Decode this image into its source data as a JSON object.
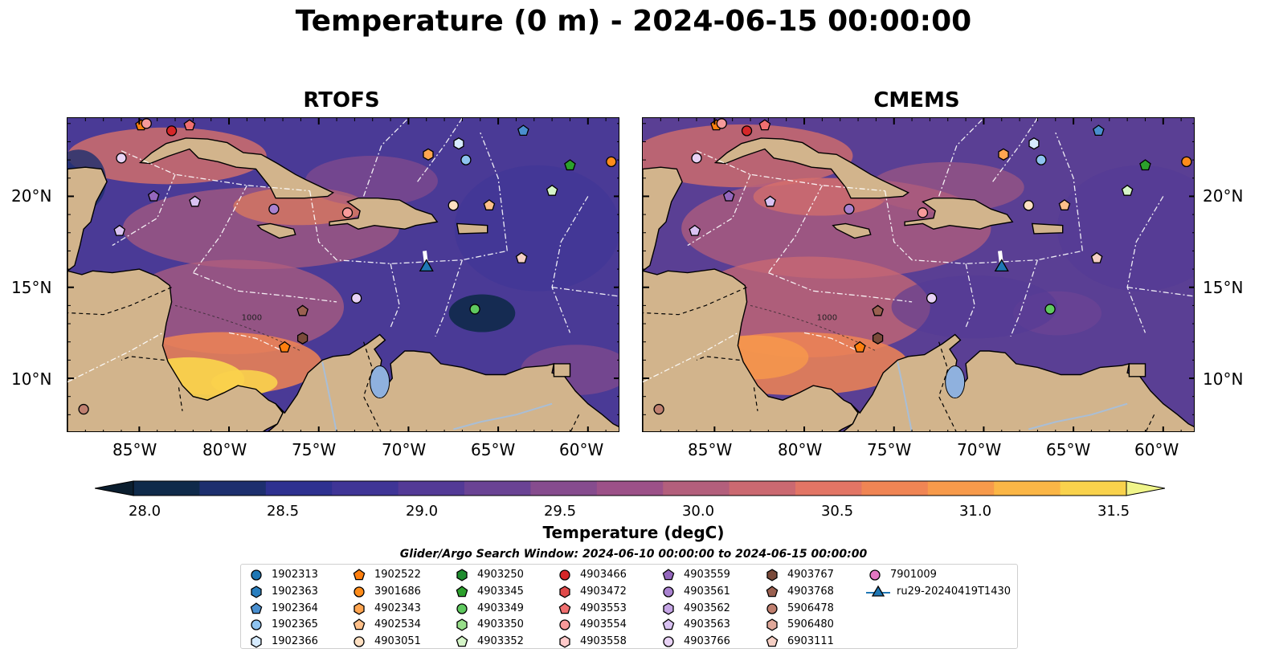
{
  "title": "Temperature (0 m) - 2024-06-15 00:00:00",
  "panels": [
    {
      "id": "rtofs",
      "title": "RTOFS"
    },
    {
      "id": "cmems",
      "title": "CMEMS"
    }
  ],
  "axes": {
    "lon_ticks": [
      "85°W",
      "80°W",
      "75°W",
      "70°W",
      "65°W",
      "60°W"
    ],
    "lat_ticks": [
      "20°N",
      "15°N",
      "10°N"
    ],
    "contour_label": "1000"
  },
  "colorbar": {
    "label": "Temperature (degC)",
    "ticks": [
      "28.0",
      "28.5",
      "29.0",
      "29.5",
      "30.0",
      "30.5",
      "31.0",
      "31.5"
    ],
    "colors": [
      "#0f2a4a",
      "#1d2f6e",
      "#2e3190",
      "#3f3596",
      "#533a96",
      "#6a4394",
      "#864c8e",
      "#9c5188",
      "#b35f7c",
      "#cb6971",
      "#e27565",
      "#f08554",
      "#f79a4b",
      "#fbb646",
      "#f9d24c"
    ],
    "extend_low": "#0b1e2f",
    "extend_high": "#f0f58a"
  },
  "legend": {
    "title": "Glider/Argo Search Window: 2024-06-10 00:00:00 to 2024-06-15 00:00:00",
    "items": [
      {
        "label": "1902313",
        "color": "#1f77b4",
        "shape": "circle"
      },
      {
        "label": "1902363",
        "color": "#2a7fbf",
        "shape": "hexagon"
      },
      {
        "label": "1902364",
        "color": "#4a8fcf",
        "shape": "pentagon"
      },
      {
        "label": "1902365",
        "color": "#8ec3ef",
        "shape": "circle"
      },
      {
        "label": "1902366",
        "color": "#d6ebff",
        "shape": "hexagon"
      },
      {
        "label": "1902522",
        "color": "#ff7f0e",
        "shape": "pentagon"
      },
      {
        "label": "3901686",
        "color": "#ff8c1a",
        "shape": "circle"
      },
      {
        "label": "4902343",
        "color": "#ffa550",
        "shape": "hexagon"
      },
      {
        "label": "4902534",
        "color": "#ffc08a",
        "shape": "pentagon"
      },
      {
        "label": "4903051",
        "color": "#ffe0c2",
        "shape": "circle"
      },
      {
        "label": "4903250",
        "color": "#1e8c2e",
        "shape": "hexagon"
      },
      {
        "label": "4903345",
        "color": "#2ca02c",
        "shape": "pentagon"
      },
      {
        "label": "4903349",
        "color": "#5fc95f",
        "shape": "circle"
      },
      {
        "label": "4903350",
        "color": "#98df8a",
        "shape": "hexagon"
      },
      {
        "label": "4903352",
        "color": "#d5f5c8",
        "shape": "pentagon"
      },
      {
        "label": "4903466",
        "color": "#d62728",
        "shape": "circle"
      },
      {
        "label": "4903472",
        "color": "#e04a4a",
        "shape": "hexagon"
      },
      {
        "label": "4903553",
        "color": "#f07070",
        "shape": "pentagon"
      },
      {
        "label": "4903554",
        "color": "#f79a9a",
        "shape": "circle"
      },
      {
        "label": "4903558",
        "color": "#ffc9c9",
        "shape": "hexagon"
      },
      {
        "label": "4903559",
        "color": "#9467bd",
        "shape": "pentagon"
      },
      {
        "label": "4903561",
        "color": "#a982d0",
        "shape": "circle"
      },
      {
        "label": "4903562",
        "color": "#c5a5e5",
        "shape": "hexagon"
      },
      {
        "label": "4903563",
        "color": "#d9c2f2",
        "shape": "pentagon"
      },
      {
        "label": "4903766",
        "color": "#e8d2f5",
        "shape": "circle"
      },
      {
        "label": "4903767",
        "color": "#7a4a3a",
        "shape": "hexagon"
      },
      {
        "label": "4903768",
        "color": "#9a6050",
        "shape": "pentagon"
      },
      {
        "label": "5906478",
        "color": "#c08070",
        "shape": "circle"
      },
      {
        "label": "5906480",
        "color": "#e0a89a",
        "shape": "hexagon"
      },
      {
        "label": "6903111",
        "color": "#f5cfc4",
        "shape": "pentagon"
      },
      {
        "label": "7901009",
        "color": "#e377c2",
        "shape": "circle"
      },
      {
        "label": "ru29-20240419T1430",
        "color": "#1f77b4",
        "shape": "triangle-line"
      }
    ]
  },
  "markers": [
    {
      "id": "1902522",
      "lon": -84.9,
      "lat": 23.9,
      "color": "#ff7f0e",
      "shape": "pentagon"
    },
    {
      "id": "4903554",
      "lon": -84.6,
      "lat": 24.0,
      "color": "#f79a9a",
      "shape": "circle"
    },
    {
      "id": "4903466",
      "lon": -83.2,
      "lat": 23.6,
      "color": "#d62728",
      "shape": "circle"
    },
    {
      "id": "4903553",
      "lon": -82.2,
      "lat": 23.9,
      "color": "#f07070",
      "shape": "pentagon"
    },
    {
      "id": "1902364",
      "lon": -63.6,
      "lat": 23.6,
      "color": "#4a8fcf",
      "shape": "pentagon"
    },
    {
      "id": "1902366",
      "lon": -67.2,
      "lat": 22.9,
      "color": "#d6ebff",
      "shape": "hexagon"
    },
    {
      "id": "4902343",
      "lon": -68.9,
      "lat": 22.3,
      "color": "#ffa550",
      "shape": "hexagon"
    },
    {
      "id": "1902365",
      "lon": -66.8,
      "lat": 22.0,
      "color": "#8ec3ef",
      "shape": "circle"
    },
    {
      "id": "4903345",
      "lon": -61.0,
      "lat": 21.7,
      "color": "#2ca02c",
      "shape": "pentagon"
    },
    {
      "id": "3901686",
      "lon": -58.7,
      "lat": 21.9,
      "color": "#ff8c1a",
      "shape": "circle"
    },
    {
      "id": "4903766",
      "lon": -86.0,
      "lat": 22.1,
      "color": "#e8d2f5",
      "shape": "circle"
    },
    {
      "id": "4903559",
      "lon": -84.2,
      "lat": 20.0,
      "color": "#9467bd",
      "shape": "pentagon"
    },
    {
      "id": "4903563",
      "lon": -81.9,
      "lat": 19.7,
      "color": "#d9c2f2",
      "shape": "pentagon"
    },
    {
      "id": "4903561",
      "lon": -77.5,
      "lat": 19.3,
      "color": "#a982d0",
      "shape": "circle"
    },
    {
      "id": "4903554b",
      "lon": -73.4,
      "lat": 19.1,
      "color": "#f79a9a",
      "shape": "circle"
    },
    {
      "id": "4903051",
      "lon": -67.5,
      "lat": 19.5,
      "color": "#ffe0c2",
      "shape": "circle"
    },
    {
      "id": "4902534",
      "lon": -65.5,
      "lat": 19.5,
      "color": "#ffc08a",
      "shape": "pentagon"
    },
    {
      "id": "4903352",
      "lon": -62.0,
      "lat": 20.3,
      "color": "#d5f5c8",
      "shape": "pentagon"
    },
    {
      "id": "4903563b",
      "lon": -86.1,
      "lat": 18.1,
      "color": "#d9c2f2",
      "shape": "pentagon"
    },
    {
      "id": "6903111",
      "lon": -63.7,
      "lat": 16.6,
      "color": "#f5cfc4",
      "shape": "pentagon"
    },
    {
      "id": "4903766b",
      "lon": -72.9,
      "lat": 14.4,
      "color": "#e8d2f5",
      "shape": "circle"
    },
    {
      "id": "4903349",
      "lon": -66.3,
      "lat": 13.8,
      "color": "#5fc95f",
      "shape": "circle"
    },
    {
      "id": "4903768",
      "lon": -75.9,
      "lat": 13.7,
      "color": "#9a6050",
      "shape": "pentagon"
    },
    {
      "id": "4903767",
      "lon": -75.9,
      "lat": 12.2,
      "color": "#7a4a3a",
      "shape": "hexagon"
    },
    {
      "id": "1902522b",
      "lon": -76.9,
      "lat": 11.7,
      "color": "#ff7f0e",
      "shape": "pentagon"
    },
    {
      "id": "5906478",
      "lon": -88.1,
      "lat": 8.3,
      "color": "#c08070",
      "shape": "circle"
    },
    {
      "id": "ru29-20240419T1430",
      "lon": -69.0,
      "lat": 16.1,
      "color": "#1f77b4",
      "shape": "triangle"
    }
  ]
}
